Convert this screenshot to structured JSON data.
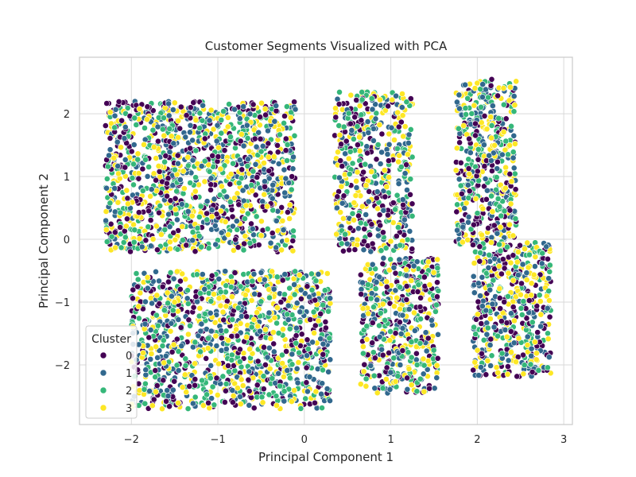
{
  "chart_data": {
    "type": "scatter",
    "title": "Customer Segments Visualized with PCA",
    "xlabel": "Principal Component 1",
    "ylabel": "Principal Component 2",
    "xlim": [
      -2.6,
      3.1
    ],
    "ylim": [
      -2.95,
      2.9
    ],
    "xticks": [
      -2,
      -1,
      0,
      1,
      2,
      3
    ],
    "yticks": [
      -2,
      -1,
      0,
      1,
      2
    ],
    "xtick_labels": [
      "−2",
      "−1",
      "0",
      "1",
      "2",
      "3"
    ],
    "ytick_labels": [
      "−2",
      "−1",
      "0",
      "1",
      "2"
    ],
    "grid": true,
    "legend": {
      "title": "Cluster",
      "placement": "lower-left",
      "entries": [
        "0",
        "1",
        "2",
        "3"
      ]
    },
    "series": [
      {
        "name": "0",
        "color": "#440154"
      },
      {
        "name": "1",
        "color": "#31688e"
      },
      {
        "name": "2",
        "color": "#35b779"
      },
      {
        "name": "3",
        "color": "#fde725"
      }
    ],
    "clusters_regions": [
      {
        "x_range": [
          -2.3,
          -0.1
        ],
        "y_range": [
          -0.2,
          2.2
        ],
        "approx_points": 1300
      },
      {
        "x_range": [
          -2.0,
          0.3
        ],
        "y_range": [
          -2.7,
          -0.5
        ],
        "approx_points": 1200
      },
      {
        "x_range": [
          0.35,
          1.25
        ],
        "y_range": [
          -0.2,
          2.35
        ],
        "approx_points": 500
      },
      {
        "x_range": [
          0.65,
          1.55
        ],
        "y_range": [
          -2.45,
          -0.3
        ],
        "approx_points": 500
      },
      {
        "x_range": [
          1.75,
          2.45
        ],
        "y_range": [
          -0.1,
          2.55
        ],
        "approx_points": 500
      },
      {
        "x_range": [
          1.95,
          2.85
        ],
        "y_range": [
          -2.2,
          -0.05
        ],
        "approx_points": 500
      }
    ]
  }
}
